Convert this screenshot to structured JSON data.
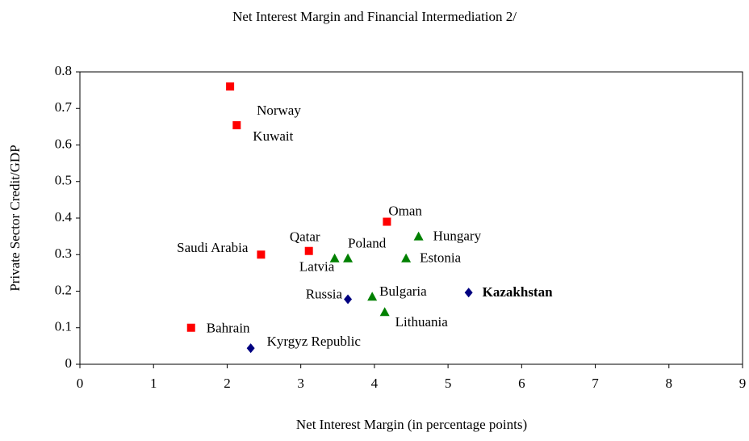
{
  "chart_data": {
    "type": "scatter",
    "title": "Net Interest Margin and Financial Intermediation 2/",
    "x_label": "Net Interest Margin (in percentage points)",
    "y_label": "Private Sector Credit/GDP",
    "xlim": [
      0,
      9
    ],
    "xticks": [
      0,
      1,
      2,
      3,
      4,
      5,
      6,
      7,
      8,
      9
    ],
    "ylim": [
      0,
      0.8
    ],
    "yticks": [
      0,
      0.1,
      0.2,
      0.3,
      0.4,
      0.5,
      0.6,
      0.7,
      0.8
    ],
    "series": [
      {
        "color": "#ff0000",
        "marker": "square",
        "labels": [
          "Norway",
          "Kuwait",
          "Oman",
          "Qatar",
          "Saudi Arabia",
          "Bahrain"
        ],
        "x": [
          2.04,
          2.13,
          4.17,
          3.11,
          2.46,
          1.51
        ],
        "values": [
          0.76,
          0.654,
          0.39,
          0.31,
          0.3,
          0.1
        ]
      },
      {
        "color": "#008000",
        "marker": "triangle",
        "labels": [
          "Hungary",
          "Latvia",
          "Poland",
          "Estonia",
          "Bulgaria",
          "Lithuania"
        ],
        "x": [
          4.6,
          3.46,
          3.64,
          4.43,
          3.97,
          4.14
        ],
        "values": [
          0.35,
          0.29,
          0.29,
          0.29,
          0.185,
          0.143
        ]
      },
      {
        "color": "#000080",
        "marker": "diamond",
        "labels": [
          "Russia",
          "Kazakhstan",
          "Kyrgyz Republic"
        ],
        "bold": [
          false,
          true,
          false
        ],
        "x": [
          3.64,
          5.28,
          2.32
        ],
        "values": [
          0.178,
          0.196,
          0.044
        ]
      }
    ]
  }
}
